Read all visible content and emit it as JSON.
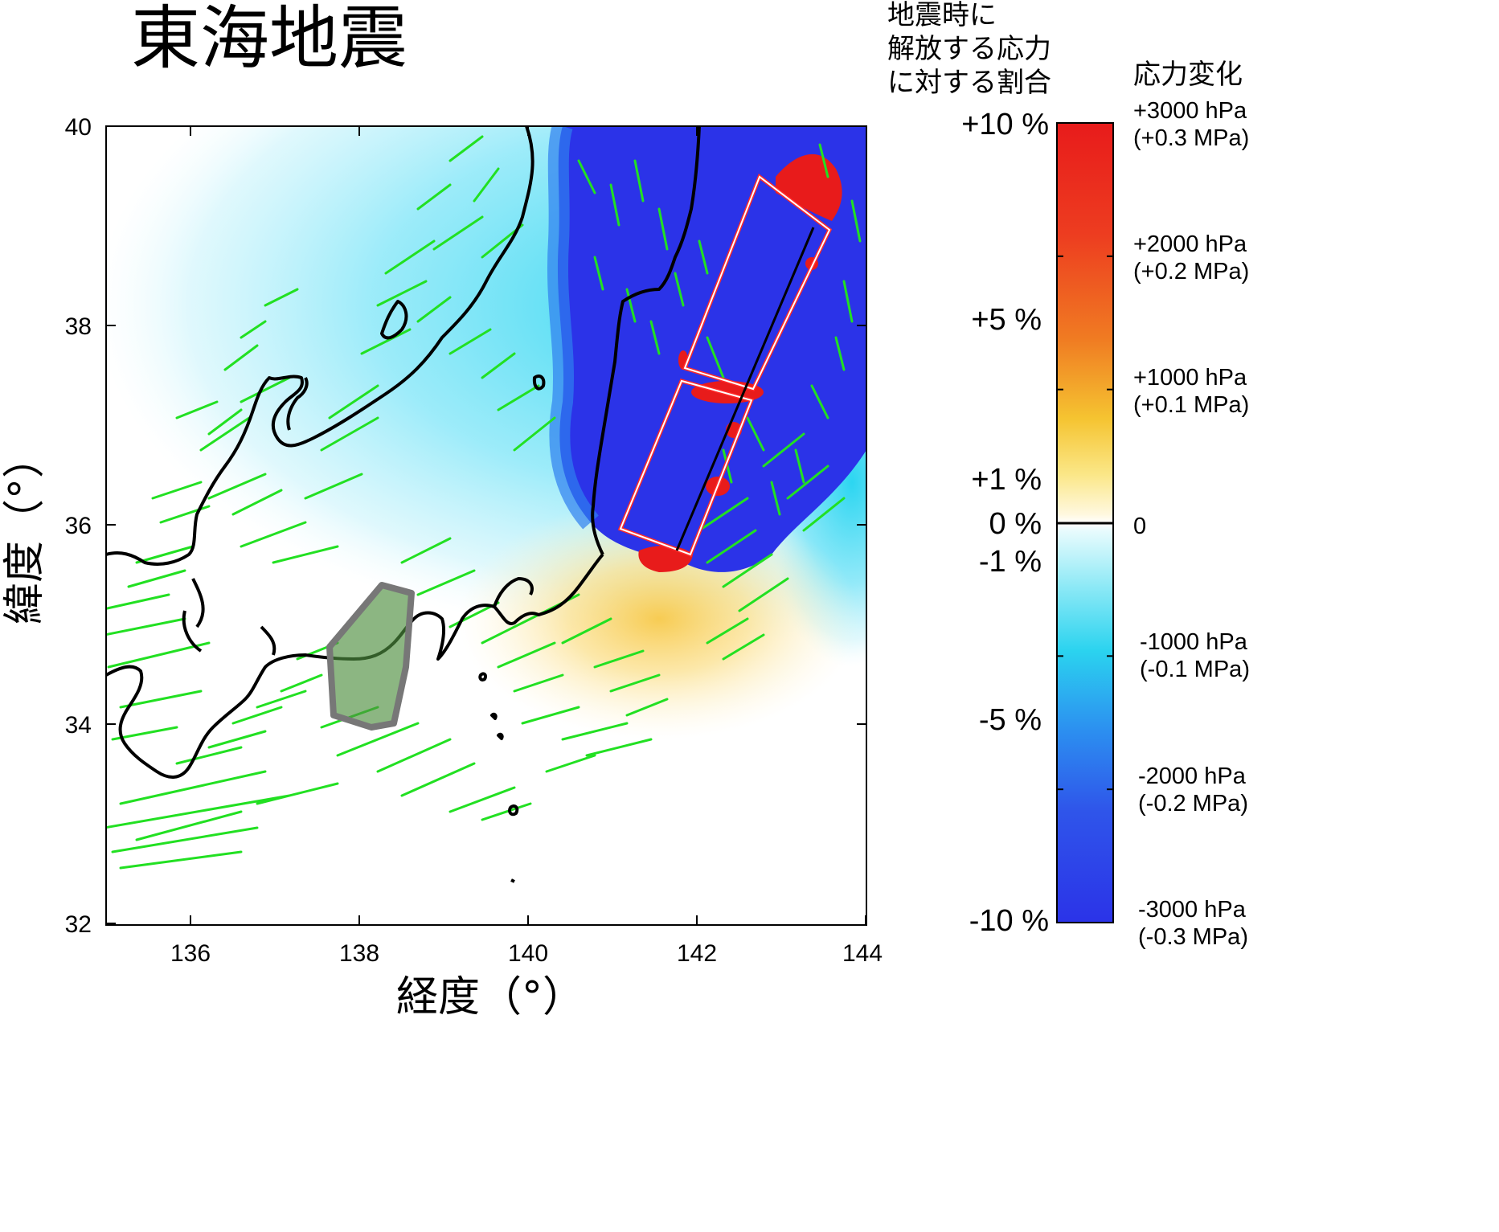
{
  "title": "東海地震",
  "axes": {
    "xlabel": "経度（°）",
    "ylabel": "緯度（°）",
    "xlim": [
      135,
      144
    ],
    "ylim": [
      32,
      40
    ],
    "xticks": [
      "136",
      "138",
      "140",
      "142",
      "144"
    ],
    "yticks": [
      "40",
      "38",
      "36",
      "34",
      "32"
    ]
  },
  "colorbar": {
    "header_ratio": [
      "地震時に",
      "解放する応力",
      "に対する割合"
    ],
    "header_change": "応力変化",
    "percent_labels": [
      {
        "text": "+10 %",
        "value": 10
      },
      {
        "text": "+5 %",
        "value": 5
      },
      {
        "text": "+1 %",
        "value": 1
      },
      {
        "text": "0 %",
        "value": 0
      },
      {
        "text": "-1 %",
        "value": -1
      },
      {
        "text": "-5 %",
        "value": -5
      },
      {
        "text": "-10 %",
        "value": -10
      }
    ],
    "stress_labels": [
      {
        "hpa": "+3000 hPa",
        "mpa": "(+0.3 MPa)",
        "value": 3000
      },
      {
        "hpa": "+2000 hPa",
        "mpa": "(+0.2 MPa)",
        "value": 2000
      },
      {
        "hpa": "+1000 hPa",
        "mpa": "(+0.1 MPa)",
        "value": 1000
      },
      {
        "hpa": "0",
        "mpa": "",
        "value": 0
      },
      {
        "hpa": "-1000 hPa",
        "mpa": "(-0.1 MPa)",
        "value": -1000
      },
      {
        "hpa": "-2000 hPa",
        "mpa": "(-0.2 MPa)",
        "value": -2000
      },
      {
        "hpa": "-3000 hPa",
        "mpa": "(-0.3 MPa)",
        "value": -3000
      }
    ]
  },
  "colors": {
    "decrease_strong": "#2b33e8",
    "decrease_light": "#c8f4fb",
    "increase_strong": "#e8201c",
    "increase_light": "#fff2c0",
    "faults": "#22e022",
    "source_fault_outline": "#ff2a2a",
    "tokai_zone": "#4f8f3f",
    "coast": "#000000"
  }
}
